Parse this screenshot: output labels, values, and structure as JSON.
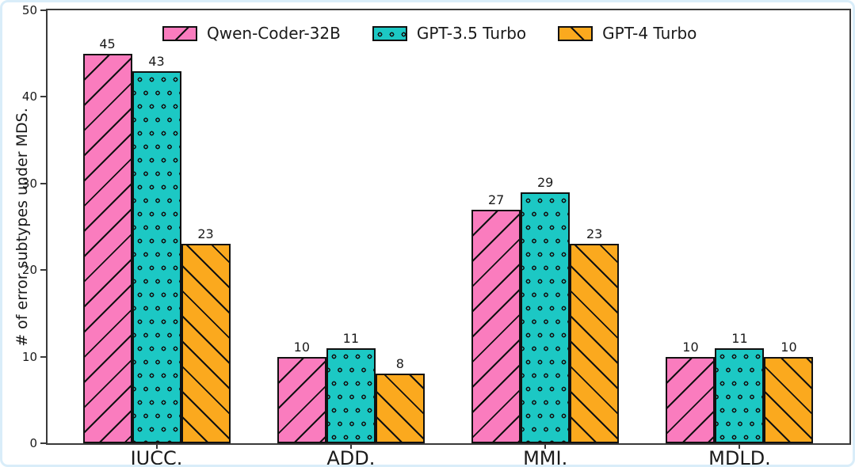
{
  "figure": {
    "background": "#ffffff",
    "frame_border_color": "#d9edf9",
    "axis_color": "#3a3a3a",
    "text_color": "#1a1a1a",
    "bar_edge_color": "#111111"
  },
  "chart_data": {
    "type": "bar",
    "title": "",
    "xlabel": "",
    "ylabel": "# of error subtypes under MDS.",
    "categories": [
      "IUCC.",
      "ADD.",
      "MMI.",
      "MDLD."
    ],
    "series": [
      {
        "name": "Qwen-Coder-32B",
        "color": "#FA7CBE",
        "hatch": "diagonal-forward",
        "values": [
          45,
          10,
          27,
          10
        ]
      },
      {
        "name": "GPT-3.5 Turbo",
        "color": "#1CC8C4",
        "hatch": "dots",
        "values": [
          43,
          11,
          29,
          11
        ]
      },
      {
        "name": "GPT-4 Turbo",
        "color": "#FBA91E",
        "hatch": "diagonal-back",
        "values": [
          23,
          8,
          23,
          10
        ]
      }
    ],
    "ylim": [
      0,
      50
    ],
    "yticks": [
      0,
      10,
      20,
      30,
      40,
      50
    ],
    "bar_value_labels": true,
    "legend_position": "upper center",
    "grid": false
  }
}
